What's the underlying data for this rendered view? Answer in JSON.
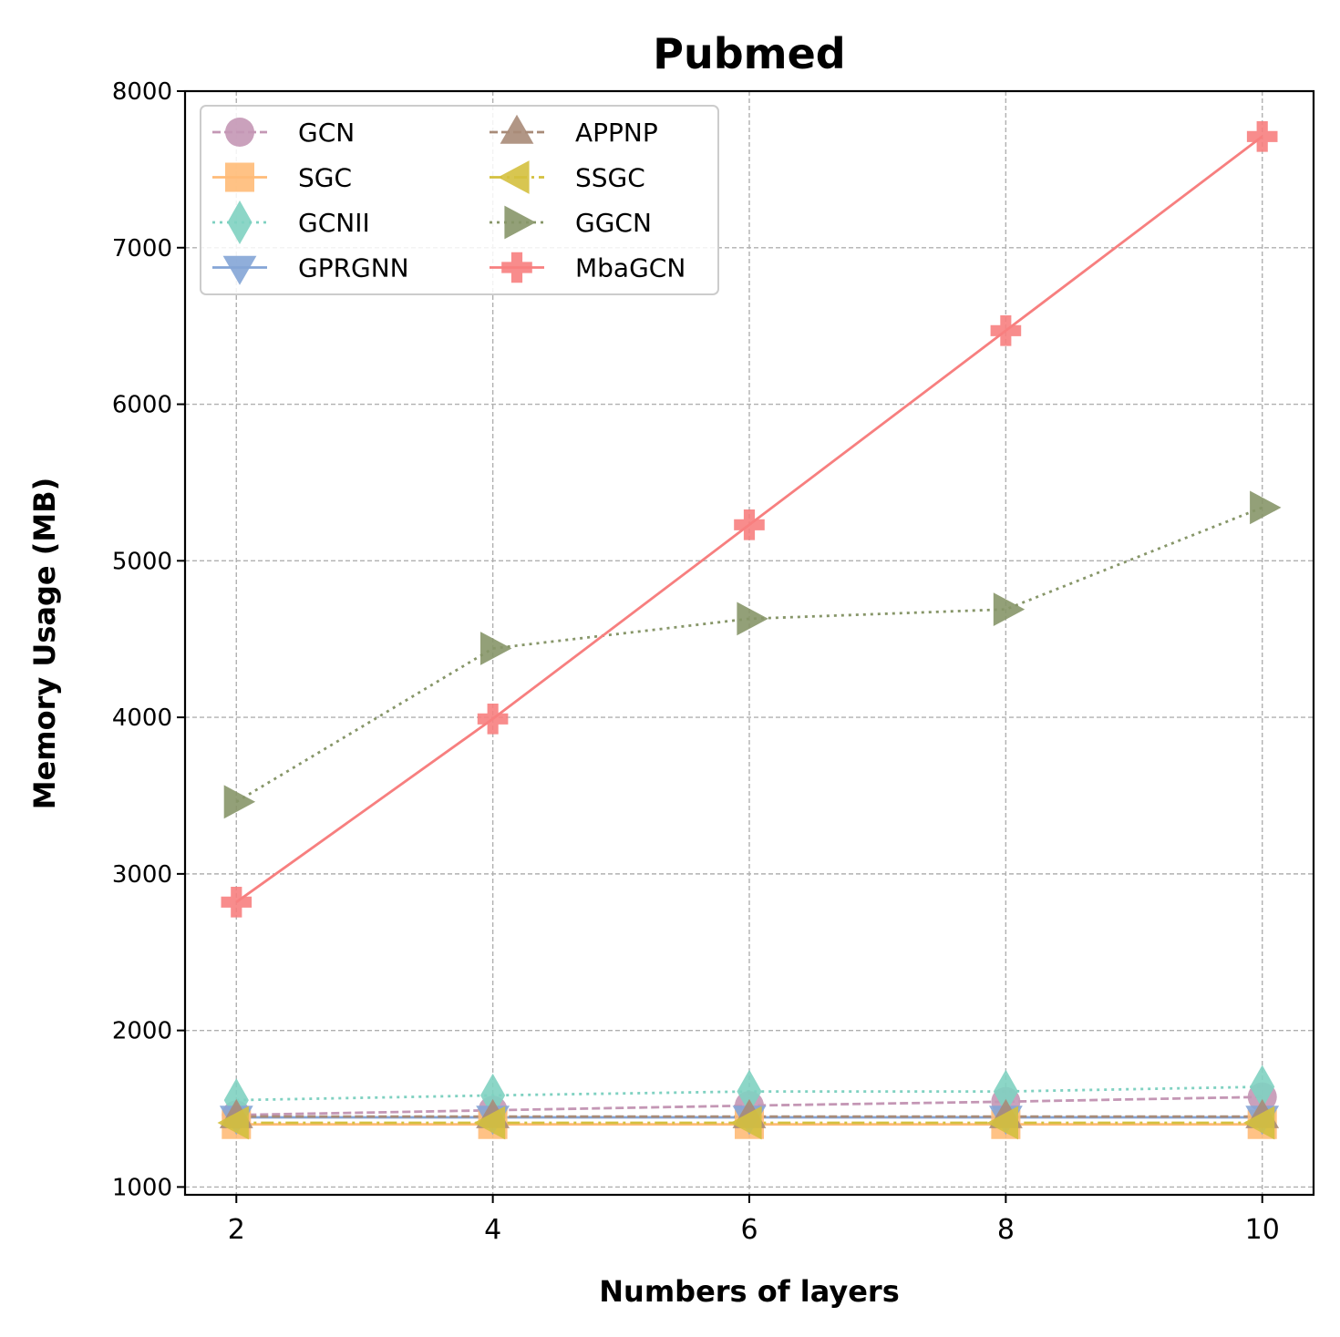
{
  "chart_data": {
    "type": "line",
    "title": "Pubmed",
    "xlabel": "Numbers of layers",
    "ylabel": "Memory Usage (MB)",
    "x": [
      2,
      4,
      6,
      8,
      10
    ],
    "xlim": [
      1.6,
      10.4
    ],
    "ylim": [
      950,
      8000
    ],
    "xticks": [
      2,
      4,
      6,
      8,
      10
    ],
    "yticks": [
      1000,
      2000,
      3000,
      4000,
      5000,
      6000,
      7000,
      8000
    ],
    "grid": true,
    "legend_position": "top-left",
    "series": [
      {
        "name": "GCN",
        "values": [
          1460,
          1490,
          1520,
          1545,
          1575
        ],
        "color": "#c497b5",
        "dash": "dashed",
        "marker": "circle"
      },
      {
        "name": "SGC",
        "values": [
          1400,
          1400,
          1400,
          1400,
          1400
        ],
        "color": "#ffbb78",
        "dash": "solid",
        "marker": "square"
      },
      {
        "name": "GCNII",
        "values": [
          1555,
          1585,
          1610,
          1610,
          1640
        ],
        "color": "#7fd1c1",
        "dash": "dotted",
        "marker": "diamond"
      },
      {
        "name": "GPRGNN",
        "values": [
          1445,
          1445,
          1445,
          1445,
          1445
        ],
        "color": "#84a5d6",
        "dash": "solid",
        "marker": "triangle-down"
      },
      {
        "name": "APPNP",
        "values": [
          1450,
          1450,
          1450,
          1450,
          1450
        ],
        "color": "#a88b78",
        "dash": "dashed",
        "marker": "triangle-up"
      },
      {
        "name": "SSGC",
        "values": [
          1410,
          1410,
          1410,
          1410,
          1410
        ],
        "color": "#d4c03e",
        "dash": "dashdot",
        "marker": "triangle-left"
      },
      {
        "name": "GGCN",
        "values": [
          3460,
          4440,
          4630,
          4690,
          5340
        ],
        "color": "#879669",
        "dash": "dotted",
        "marker": "triangle-right"
      },
      {
        "name": "MbaGCN",
        "values": [
          2820,
          3990,
          5230,
          6470,
          7710
        ],
        "color": "#f77f7f",
        "dash": "solid",
        "marker": "plus"
      }
    ]
  }
}
